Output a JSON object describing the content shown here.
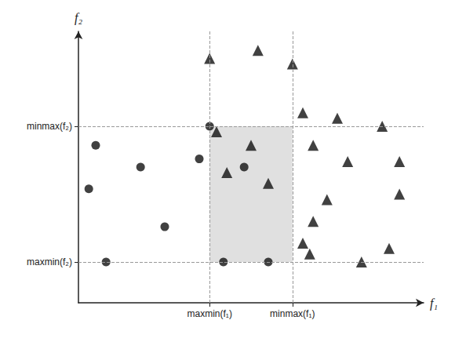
{
  "chart_data": {
    "type": "scatter",
    "xlabel": "f₁",
    "ylabel": "f₂",
    "xlim": [
      0,
      10
    ],
    "ylim": [
      0,
      10
    ],
    "xticks": [
      {
        "value": 3.8,
        "label": "maxmin(f₁)"
      },
      {
        "value": 6.2,
        "label": "minmax(f₁)"
      }
    ],
    "yticks": [
      {
        "value": 1.5,
        "label": "maxmin(f₂)"
      },
      {
        "value": 6.5,
        "label": "minmax(f₂)"
      }
    ],
    "grid": true,
    "color": "#111111",
    "series": [
      {
        "marker": "circle",
        "x": [
          0.5,
          1.8,
          0.3,
          2.5,
          0.8,
          3.8,
          3.5,
          4.8,
          4.2,
          5.5
        ],
        "values": [
          5.8,
          5.0,
          4.2,
          2.8,
          1.5,
          6.5,
          5.3,
          5.0,
          1.5,
          1.5
        ]
      },
      {
        "marker": "triangle",
        "x": [
          3.8,
          5.2,
          6.2,
          4.0,
          5.0,
          4.3,
          5.5,
          6.5,
          7.5,
          8.8,
          6.8,
          7.8,
          9.3,
          7.2,
          8.2,
          9.0,
          6.8,
          6.7,
          9.3,
          6.5
        ],
        "values": [
          9.0,
          9.3,
          8.8,
          6.3,
          5.8,
          4.8,
          4.4,
          7.0,
          6.8,
          6.5,
          5.8,
          5.2,
          5.2,
          3.8,
          1.5,
          2.0,
          3.0,
          1.8,
          4.0,
          2.2
        ]
      }
    ]
  }
}
